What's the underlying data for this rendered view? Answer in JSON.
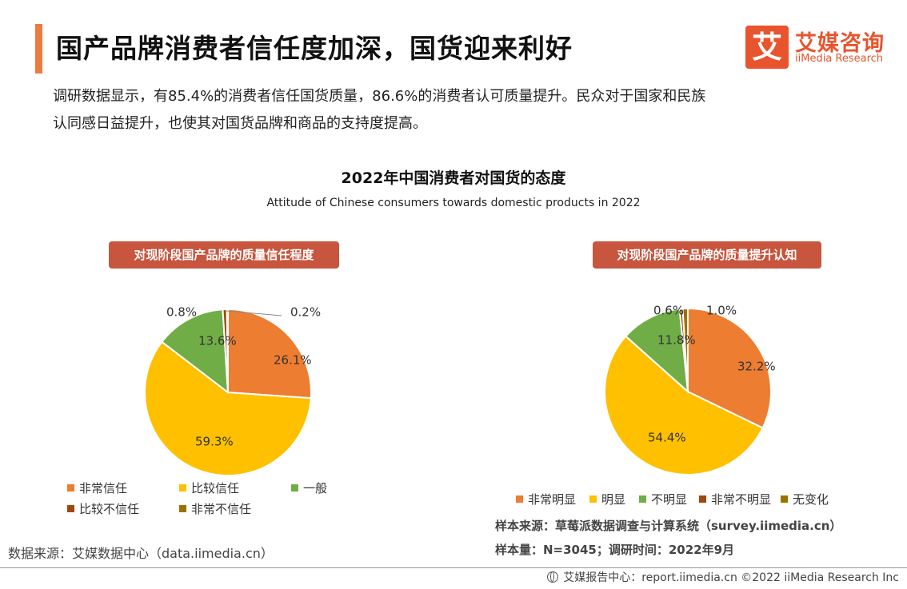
{
  "header": {
    "title": "国产品牌消费者信任度加深，国货迎来利好",
    "logo_cn": "艾媒咨询",
    "logo_en": "iiMedia Research",
    "logo_glyph": "艾"
  },
  "intro": {
    "line1": "调研数据显示，有85.4%的消费者信任国货质量，86.6%的消费者认可质量提升。民众对于国家和民族",
    "line2": "认同感日益提升，也使其对国货品牌和商品的支持度提高。"
  },
  "chart_title": "2022年中国消费者对国货的态度",
  "chart_subtitle": "Attitude of Chinese consumers towards domestic products in 2022",
  "chart_data": [
    {
      "type": "pie",
      "title": "对现阶段国产品牌的质量信任程度",
      "categories": [
        "非常信任",
        "比较信任",
        "一般",
        "比较不信任",
        "非常不信任"
      ],
      "values": [
        26.1,
        59.3,
        13.6,
        0.8,
        0.2
      ],
      "labels": [
        "26.1%",
        "59.3%",
        "13.6%",
        "0.8%",
        "0.2%"
      ],
      "colors": [
        "#ed7d31",
        "#ffc000",
        "#70ad47",
        "#9e480e",
        "#997300"
      ],
      "legend_position": "bottom"
    },
    {
      "type": "pie",
      "title": "对现阶段国产品牌的质量提升认知",
      "categories": [
        "非常明显",
        "明显",
        "不明显",
        "非常不明显",
        "无变化"
      ],
      "values": [
        32.2,
        54.4,
        11.8,
        0.6,
        1.0
      ],
      "labels": [
        "32.2%",
        "54.4%",
        "11.8%",
        "0.6%",
        "1.0%"
      ],
      "colors": [
        "#ed7d31",
        "#ffc000",
        "#70ad47",
        "#9e480e",
        "#997300"
      ],
      "legend_position": "bottom"
    }
  ],
  "notes": {
    "sample_source": "样本来源：草莓派数据调查与计算系统（survey.iimedia.cn）",
    "sample_size": "样本量：N=3045；调研时间：2022年9月"
  },
  "data_source": "数据来源：艾媒数据中心（data.iimedia.cn）",
  "footer": "艾媒报告中心：report.iimedia.cn  ©2022  iiMedia Research  Inc"
}
